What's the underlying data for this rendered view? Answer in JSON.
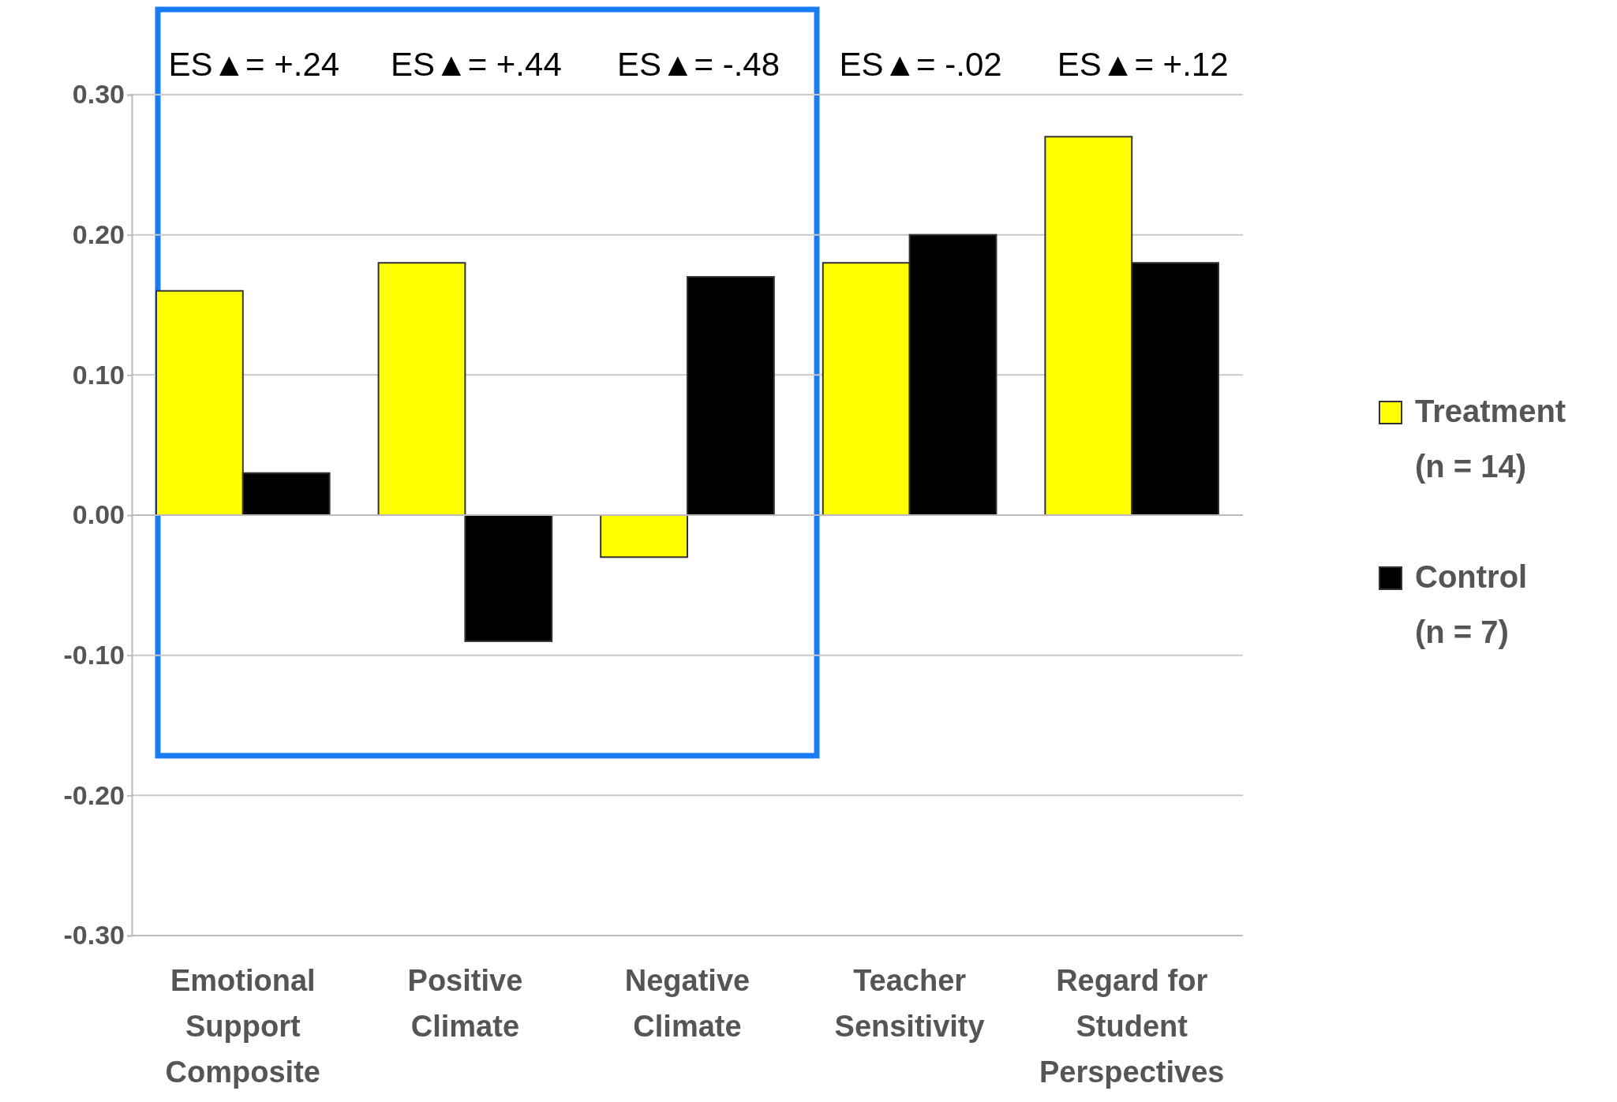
{
  "chart_data": {
    "type": "bar",
    "categories": [
      "Emotional Support Composite",
      "Positive Climate",
      "Negative Climate",
      "Teacher Sensitivity",
      "Regard for Student Perspectives"
    ],
    "series": [
      {
        "name": "Treatment (n = 14)",
        "color": "#ffff00",
        "values": [
          0.16,
          0.18,
          -0.03,
          0.18,
          0.27
        ]
      },
      {
        "name": "Control (n = 7)",
        "color": "#000000",
        "values": [
          0.03,
          -0.09,
          0.17,
          0.2,
          0.18
        ]
      }
    ],
    "ylim": [
      -0.3,
      0.3
    ],
    "yticks": [
      {
        "value": -0.3,
        "label": "-0.30"
      },
      {
        "value": -0.2,
        "label": "-0.20"
      },
      {
        "value": -0.1,
        "label": "-0.10"
      },
      {
        "value": 0,
        "label": "0.00"
      },
      {
        "value": 0.1,
        "label": "0.10"
      },
      {
        "value": 0.2,
        "label": "0.20"
      },
      {
        "value": 0.3,
        "label": "0.30"
      }
    ],
    "grid": "y",
    "legend": "right",
    "annotations": [
      "ES▲= +.24",
      "ES▲= +.44",
      "ES▲= -.48",
      "ES▲= -.02",
      "ES▲= +.12"
    ]
  }
}
